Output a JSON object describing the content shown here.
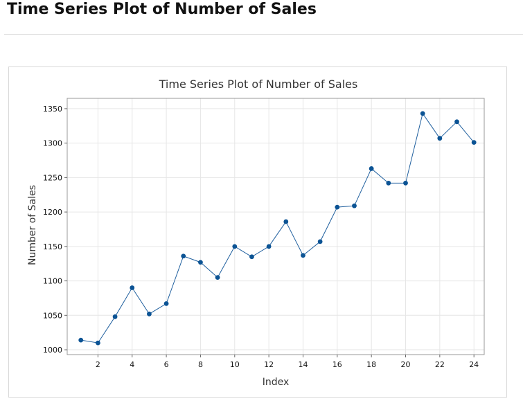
{
  "page": {
    "title": "Time Series Plot of Number of Sales"
  },
  "chart_data": {
    "type": "line",
    "title": "Time Series Plot of Number of Sales",
    "xlabel": "Index",
    "ylabel": "Number of Sales",
    "x": [
      1,
      2,
      3,
      4,
      5,
      6,
      7,
      8,
      9,
      10,
      11,
      12,
      13,
      14,
      15,
      16,
      17,
      18,
      19,
      20,
      21,
      22,
      23,
      24
    ],
    "series": [
      {
        "values": [
          1014,
          1010,
          1048,
          1090,
          1052,
          1067,
          1136,
          1127,
          1105,
          1150,
          1135,
          1150,
          1186,
          1137,
          1157,
          1207,
          1209,
          1263,
          1242,
          1242,
          1343,
          1307,
          1331,
          1301
        ]
      }
    ],
    "xlim": [
      0.2,
      24.6
    ],
    "ylim": [
      993,
      1365
    ],
    "xticks": [
      2,
      4,
      6,
      8,
      10,
      12,
      14,
      16,
      18,
      20,
      22,
      24
    ],
    "yticks": [
      1000,
      1050,
      1100,
      1150,
      1200,
      1250,
      1300,
      1350
    ],
    "grid": true,
    "colors": {
      "line": "#1f5f9e",
      "marker": "#0b5394",
      "grid": "#e6e6e6",
      "frame": "#999999"
    }
  }
}
